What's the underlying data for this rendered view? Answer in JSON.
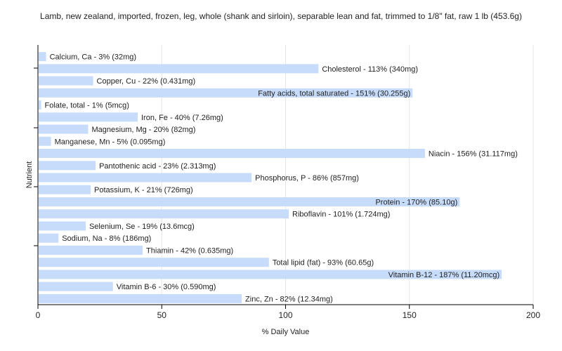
{
  "chart_data": {
    "type": "bar",
    "orientation": "horizontal",
    "title": "Lamb, new zealand, imported, frozen, leg, whole (shank and sirloin), separable lean and fat, trimmed to 1/8\" fat, raw 1 lb (453.6g)",
    "xlabel": "% Daily Value",
    "ylabel": "Nutrient",
    "xlim": [
      0,
      200
    ],
    "xticks": [
      0,
      50,
      100,
      150,
      200
    ],
    "grid": "vertical",
    "bar_color": "#c6dcfa",
    "categories": [
      "Calcium, Ca",
      "Cholesterol",
      "Copper, Cu",
      "Fatty acids, total saturated",
      "Folate, total",
      "Iron, Fe",
      "Magnesium, Mg",
      "Manganese, Mn",
      "Niacin",
      "Pantothenic acid",
      "Phosphorus, P",
      "Potassium, K",
      "Protein",
      "Riboflavin",
      "Selenium, Se",
      "Sodium, Na",
      "Thiamin",
      "Total lipid (fat)",
      "Vitamin B-12",
      "Vitamin B-6",
      "Zinc, Zn"
    ],
    "values": [
      3,
      113,
      22,
      151,
      1,
      40,
      20,
      5,
      156,
      23,
      86,
      21,
      170,
      101,
      19,
      8,
      42,
      93,
      187,
      30,
      82
    ],
    "labels": [
      "Calcium, Ca - 3% (32mg)",
      "Cholesterol - 113% (340mg)",
      "Copper, Cu - 22% (0.431mg)",
      "Fatty acids, total saturated - 151% (30.255g)",
      "Folate, total - 1% (5mcg)",
      "Iron, Fe - 40% (7.26mg)",
      "Magnesium, Mg - 20% (82mg)",
      "Manganese, Mn - 5% (0.095mg)",
      "Niacin - 156% (31.117mg)",
      "Pantothenic acid - 23% (2.313mg)",
      "Phosphorus, P - 86% (857mg)",
      "Potassium, K - 21% (726mg)",
      "Protein - 170% (85.10g)",
      "Riboflavin - 101% (1.724mg)",
      "Selenium, Se - 19% (13.6mcg)",
      "Sodium, Na - 8% (186mg)",
      "Thiamin - 42% (0.635mg)",
      "Total lipid (fat) - 93% (60.65g)",
      "Vitamin B-12 - 187% (11.20mcg)",
      "Vitamin B-6 - 30% (0.590mg)",
      "Zinc, Zn - 82% (12.34mg)"
    ]
  }
}
